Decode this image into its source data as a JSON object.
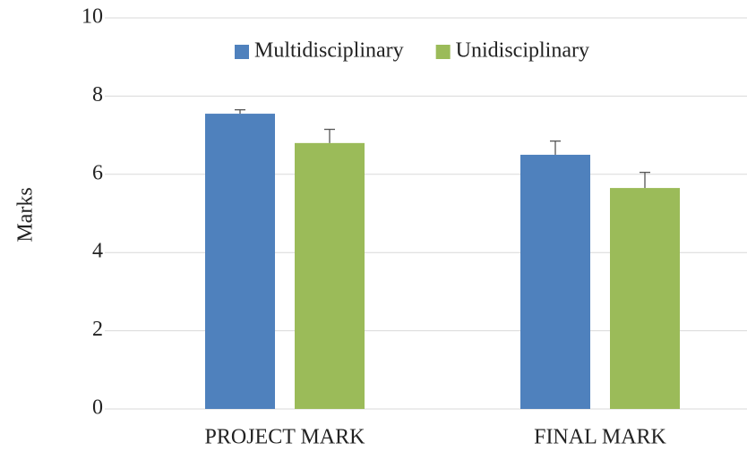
{
  "chart_data": {
    "type": "bar",
    "y_label": "Marks",
    "categories": [
      "PROJECT MARK",
      "FINAL MARK"
    ],
    "series": [
      {
        "name": "Multidisciplinary",
        "color": "#4f81bd",
        "values": [
          7.55,
          6.5
        ],
        "errors": [
          0.1,
          0.35
        ]
      },
      {
        "name": "Unidisciplinary",
        "color": "#9bbb59",
        "values": [
          6.8,
          5.65
        ],
        "errors": [
          0.35,
          0.4
        ]
      }
    ],
    "ylim": [
      0,
      10
    ],
    "yticks": [
      0,
      2,
      4,
      6,
      8,
      10
    ],
    "grid": true,
    "legend": "top"
  }
}
